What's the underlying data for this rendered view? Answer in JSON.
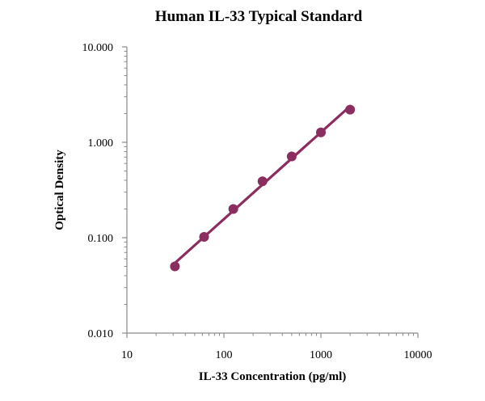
{
  "chart_data": {
    "type": "scatter",
    "title": "Human IL-33 Typical Standard",
    "xlabel": "IL-33 Concentration (pg/ml)",
    "ylabel": "Optical Density",
    "x_scale": "log",
    "y_scale": "log",
    "xlim": [
      10,
      10000
    ],
    "ylim": [
      0.01,
      10
    ],
    "x_ticks": [
      "10",
      "100",
      "1000",
      "10000"
    ],
    "y_ticks": [
      "0.010",
      "0.100",
      "1.000",
      "10.000"
    ],
    "grid": false,
    "legend": "none",
    "series": [
      {
        "color": "#8B2D5E",
        "x": [
          31.25,
          62.5,
          125,
          250,
          500,
          1000,
          2000
        ],
        "y": [
          0.05,
          0.102,
          0.2,
          0.39,
          0.71,
          1.27,
          2.2
        ]
      }
    ]
  }
}
